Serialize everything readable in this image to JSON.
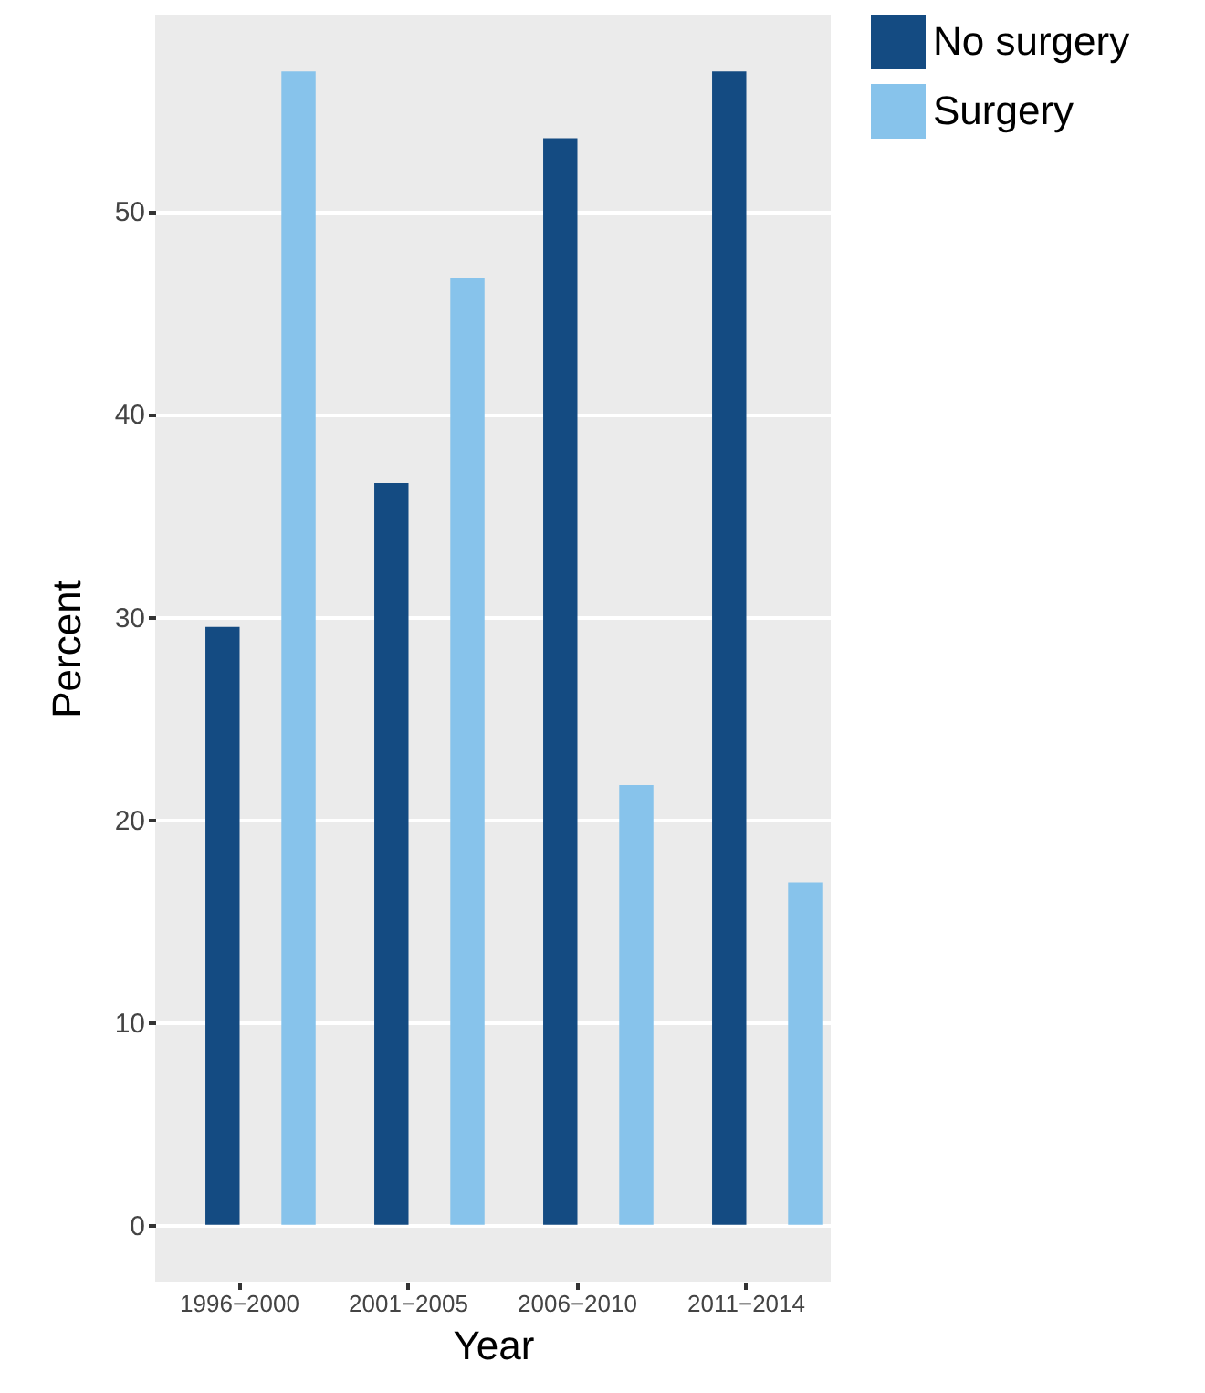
{
  "chart_data": {
    "type": "bar",
    "xlabel": "Year",
    "ylabel": "Percent",
    "categories": [
      "1996−2000",
      "2001−2005",
      "2006−2010",
      "2011−2014"
    ],
    "series": [
      {
        "name": "No surgery",
        "color": "#144b82",
        "values": [
          29.5,
          36.6,
          53.6,
          56.9
        ]
      },
      {
        "name": "Surgery",
        "color": "#87c3eb",
        "values": [
          56.9,
          46.7,
          21.7,
          16.9
        ]
      }
    ],
    "ylim": [
      -2.8,
      59.7
    ],
    "yticks": [
      0,
      10,
      20,
      30,
      40,
      50
    ],
    "grid": "y",
    "legend": "right"
  }
}
